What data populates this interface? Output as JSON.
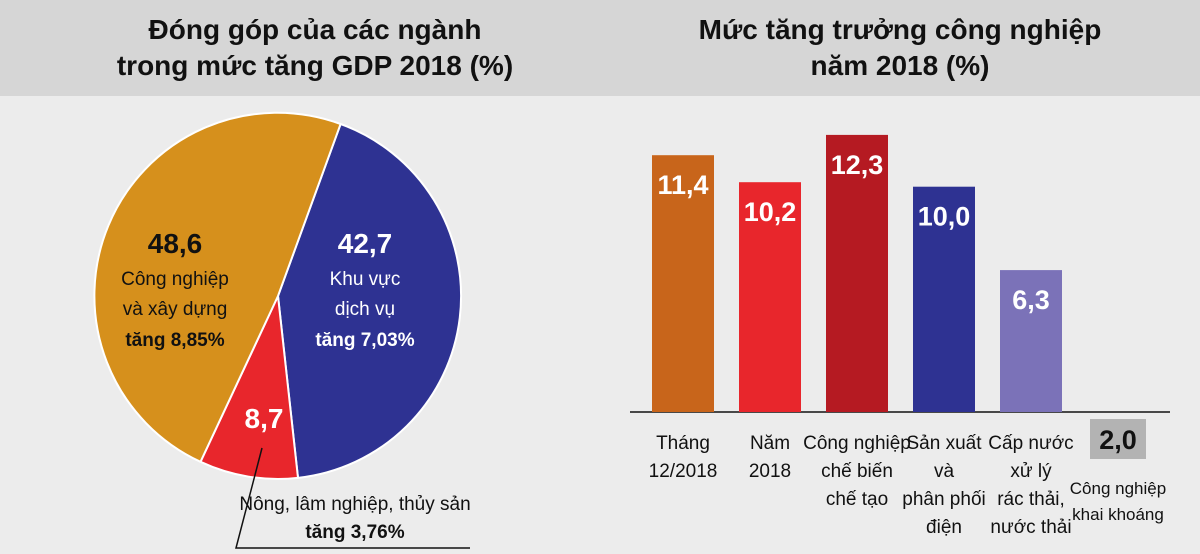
{
  "pie_title": "Đóng góp của các ngành\ntrong mức tăng GDP 2018 (%)",
  "bar_title": "Mức tăng trưởng công nghiệp\nnăm 2018 (%)",
  "colors": {
    "background": "#ececec",
    "header": "#d6d6d6",
    "orange": "#d6901c",
    "navy": "#2e3292",
    "red": "#e8262c",
    "bar_orange": "#c8651b",
    "bar_red": "#e8262c",
    "bar_darkred": "#b51a22",
    "bar_navy": "#2e3292",
    "bar_purple": "#7b72b8",
    "bar_gray": "#b3b3b3"
  },
  "chart_data": [
    {
      "type": "pie",
      "title": "Đóng góp của các ngành trong mức tăng GDP 2018 (%)",
      "slices": [
        {
          "value": 48.6,
          "label": "48,6",
          "name_lines": [
            "Công nghiệp",
            "và xây dựng"
          ],
          "growth": "tăng 8,85%",
          "color": "#d6901c"
        },
        {
          "value": 42.7,
          "label": "42,7",
          "name_lines": [
            "Khu vực",
            "dịch vụ"
          ],
          "growth": "tăng 7,03%",
          "color": "#2e3292"
        },
        {
          "value": 8.7,
          "label": "8,7",
          "name_lines": [
            "Nông, lâm nghiệp, thủy sản"
          ],
          "growth": "tăng 3,76%",
          "color": "#e8262c"
        }
      ]
    },
    {
      "type": "bar",
      "title": "Mức tăng trưởng công nghiệp năm 2018 (%)",
      "ylim": [
        0,
        13
      ],
      "categories": [
        {
          "lines": [
            "Tháng",
            "12/2018"
          ]
        },
        {
          "lines": [
            "Năm",
            "2018"
          ]
        },
        {
          "lines": [
            "Công nghiệp",
            "chế biến",
            "chế tạo"
          ]
        },
        {
          "lines": [
            "Sản xuất",
            "và",
            "phân phối",
            "điện"
          ]
        },
        {
          "lines": [
            "Cấp nước",
            "xử lý",
            "rác thải,",
            "nước thải"
          ]
        },
        {
          "lines": [
            "Công nghiệp",
            "khai khoáng"
          ]
        }
      ],
      "values": [
        11.4,
        10.2,
        12.3,
        10.0,
        6.3,
        2.0
      ],
      "value_labels": [
        "11,4",
        "10,2",
        "12,3",
        "10,0",
        "6,3",
        "2,0"
      ],
      "bar_colors": [
        "#c8651b",
        "#e8262c",
        "#b51a22",
        "#2e3292",
        "#7b72b8",
        "#b3b3b3"
      ]
    }
  ]
}
